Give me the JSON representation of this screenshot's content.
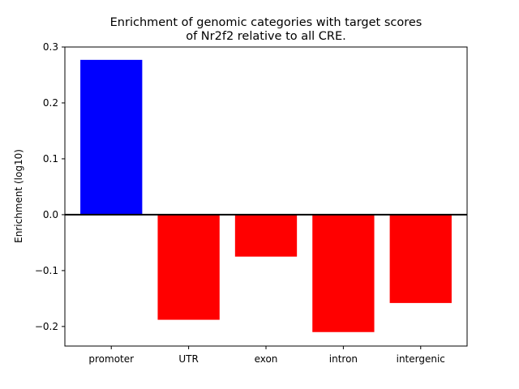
{
  "chart_data": {
    "type": "bar",
    "title_line1": "Enrichment of genomic categories with target scores",
    "title_line2": "of Nr2f2 relative to all CRE.",
    "xlabel": "",
    "ylabel": "Enrichment (log10)",
    "categories": [
      "promoter",
      "UTR",
      "exon",
      "intron",
      "intergenic"
    ],
    "values": [
      0.277,
      -0.188,
      -0.075,
      -0.21,
      -0.158
    ],
    "colors": [
      "#0000ff",
      "#ff0000",
      "#ff0000",
      "#ff0000",
      "#ff0000"
    ],
    "ylim": [
      -0.235,
      0.3
    ],
    "yticks": [
      -0.2,
      -0.1,
      0.0,
      0.1,
      0.2,
      0.3
    ],
    "ytick_labels": [
      "−0.2",
      "−0.1",
      "0.0",
      "0.1",
      "0.2",
      "0.3"
    ],
    "zero_line": true,
    "grid": false
  }
}
